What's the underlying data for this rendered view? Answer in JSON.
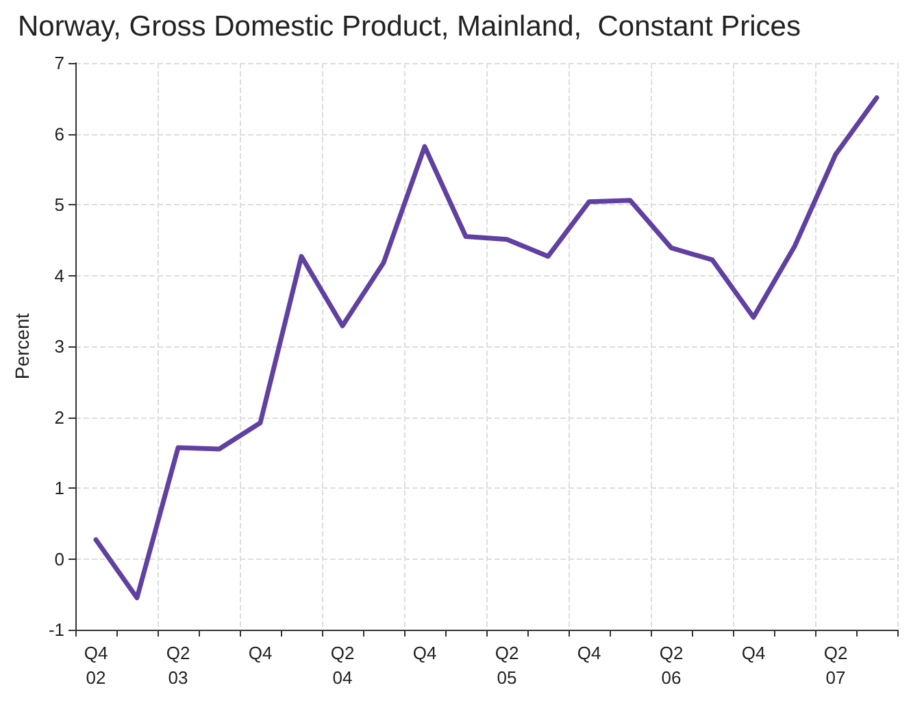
{
  "chart_data": {
    "type": "line",
    "title": "Norway, Gross Domestic Product, Mainland,  Constant Prices",
    "ylabel": "Percent",
    "categories": [
      "Q4\n02",
      null,
      "Q2\n03",
      null,
      "Q4",
      null,
      "Q2\n04",
      null,
      "Q4",
      null,
      "Q2\n05",
      null,
      "Q4",
      null,
      "Q2\n06",
      null,
      "Q4",
      null,
      "Q2\n07",
      null
    ],
    "series": [
      {
        "color": "#6040a0",
        "values": [
          0.27,
          -0.55,
          1.57,
          1.55,
          1.92,
          4.27,
          3.29,
          4.18,
          5.82,
          4.55,
          4.51,
          4.27,
          5.04,
          5.06,
          4.39,
          4.22,
          3.41,
          4.41,
          5.71,
          6.51
        ]
      }
    ],
    "ylim": [
      -1,
      7
    ],
    "yticks": [
      -1,
      0,
      1,
      2,
      3,
      4,
      5,
      6,
      7
    ],
    "grid": true,
    "marker": "none",
    "line_style": "solid"
  }
}
